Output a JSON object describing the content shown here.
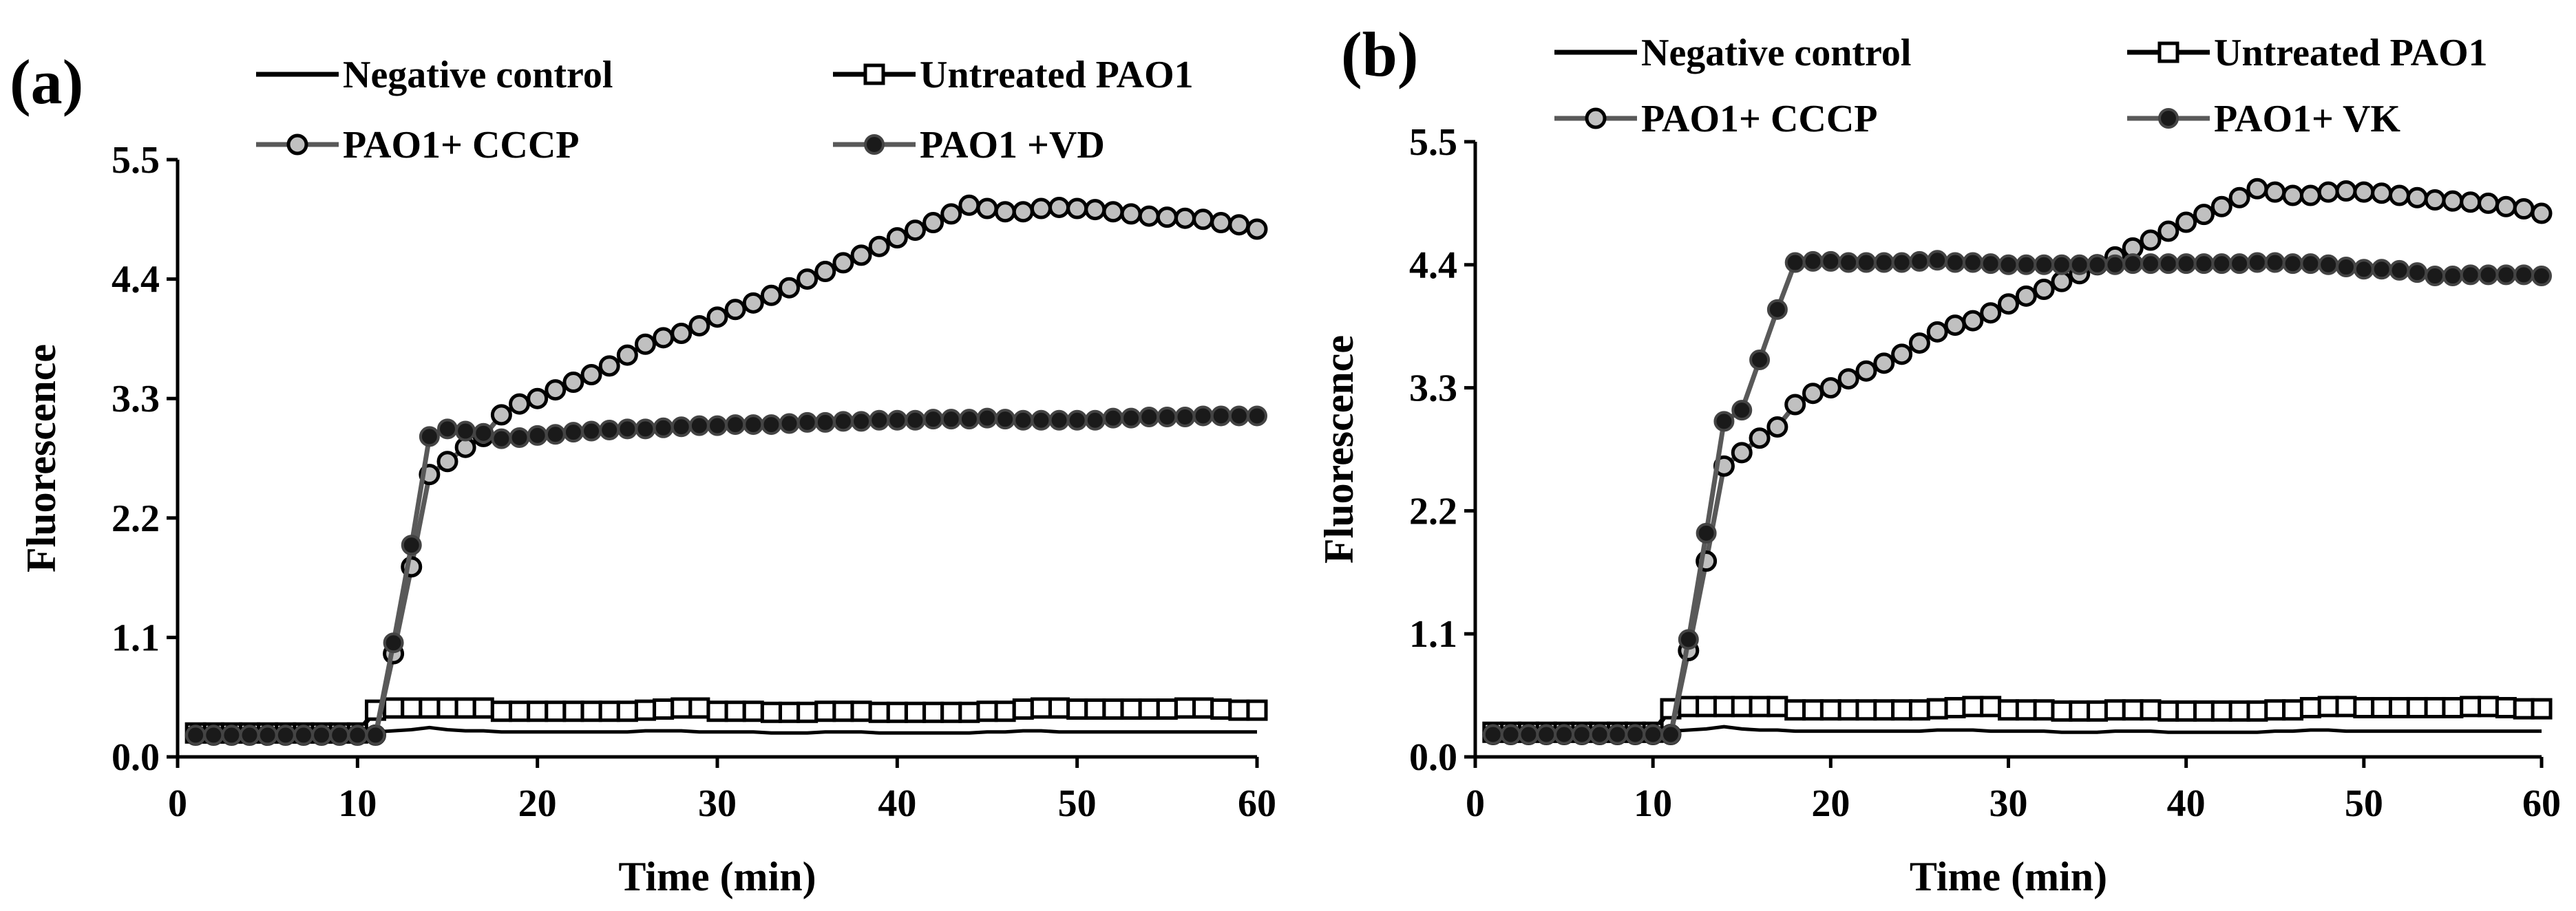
{
  "figure": {
    "panels": [
      {
        "label": "(a)",
        "legend": [
          {
            "text": "Negative control",
            "style": "line"
          },
          {
            "text": "Untreated PAO1",
            "style": "open-square"
          },
          {
            "text": "PAO1+ CCCP",
            "style": "grey-circle"
          },
          {
            "text": "PAO1 +VD",
            "style": "black-circle"
          }
        ]
      },
      {
        "label": "(b)",
        "legend": [
          {
            "text": "Negative control",
            "style": "line"
          },
          {
            "text": "Untreated PAO1",
            "style": "open-square"
          },
          {
            "text": "PAO1+ CCCP",
            "style": "grey-circle"
          },
          {
            "text": "PAO1+ VK",
            "style": "black-circle"
          }
        ]
      }
    ],
    "colors": {
      "line": "#000000",
      "treatment_line": "#595959",
      "cccp_fill": "#c0c0c0",
      "drug_fill": "#1a1a1a",
      "square_fill": "#ffffff"
    }
  },
  "chart_data": [
    {
      "type": "line",
      "title": "(a)",
      "xlabel": "Time (min)",
      "ylabel": "Fluorescence",
      "xlim": [
        0,
        60
      ],
      "ylim": [
        0,
        5.5
      ],
      "xticks": [
        "0",
        "10",
        "20",
        "30",
        "40",
        "50",
        "60"
      ],
      "yticks": [
        "0.0",
        "1.1",
        "2.2",
        "3.3",
        "4.4",
        "5.5"
      ],
      "grid": false,
      "legend": "top",
      "x": [
        1,
        2,
        3,
        4,
        5,
        6,
        7,
        8,
        9,
        10,
        11,
        12,
        13,
        14,
        15,
        16,
        17,
        18,
        19,
        20,
        21,
        22,
        23,
        24,
        25,
        26,
        27,
        28,
        29,
        30,
        31,
        32,
        33,
        34,
        35,
        36,
        37,
        38,
        39,
        40,
        41,
        42,
        43,
        44,
        45,
        46,
        47,
        48,
        49,
        50,
        51,
        52,
        53,
        54,
        55,
        56,
        57,
        58,
        59,
        60
      ],
      "series": [
        {
          "name": "Negative control",
          "marker": "none",
          "values": [
            0.23,
            0.23,
            0.23,
            0.23,
            0.23,
            0.23,
            0.23,
            0.23,
            0.23,
            0.23,
            0.23,
            0.24,
            0.25,
            0.27,
            0.25,
            0.24,
            0.24,
            0.23,
            0.23,
            0.23,
            0.23,
            0.23,
            0.23,
            0.23,
            0.23,
            0.24,
            0.24,
            0.24,
            0.23,
            0.23,
            0.23,
            0.23,
            0.22,
            0.22,
            0.22,
            0.23,
            0.23,
            0.23,
            0.22,
            0.22,
            0.22,
            0.22,
            0.22,
            0.22,
            0.23,
            0.23,
            0.24,
            0.24,
            0.23,
            0.23,
            0.23,
            0.23,
            0.23,
            0.23,
            0.23,
            0.23,
            0.23,
            0.23,
            0.23,
            0.23
          ]
        },
        {
          "name": "Untreated PAO1",
          "marker": "open-square",
          "values": [
            0.22,
            0.22,
            0.22,
            0.22,
            0.22,
            0.22,
            0.22,
            0.22,
            0.22,
            0.22,
            0.43,
            0.45,
            0.45,
            0.45,
            0.45,
            0.45,
            0.45,
            0.42,
            0.42,
            0.42,
            0.42,
            0.42,
            0.42,
            0.42,
            0.42,
            0.43,
            0.44,
            0.45,
            0.45,
            0.42,
            0.42,
            0.42,
            0.41,
            0.41,
            0.41,
            0.42,
            0.42,
            0.42,
            0.41,
            0.41,
            0.41,
            0.41,
            0.41,
            0.41,
            0.42,
            0.42,
            0.44,
            0.45,
            0.45,
            0.44,
            0.44,
            0.44,
            0.44,
            0.44,
            0.44,
            0.45,
            0.45,
            0.44,
            0.43,
            0.43
          ]
        },
        {
          "name": "PAO1+ CCCP",
          "marker": "grey-circle",
          "values": [
            0.2,
            0.2,
            0.2,
            0.2,
            0.2,
            0.2,
            0.2,
            0.2,
            0.2,
            0.2,
            0.2,
            0.95,
            1.75,
            2.6,
            2.72,
            2.85,
            2.95,
            3.15,
            3.25,
            3.3,
            3.38,
            3.45,
            3.52,
            3.6,
            3.7,
            3.8,
            3.86,
            3.9,
            3.97,
            4.05,
            4.12,
            4.18,
            4.25,
            4.32,
            4.4,
            4.47,
            4.55,
            4.62,
            4.7,
            4.78,
            4.85,
            4.92,
            5.0,
            5.08,
            5.05,
            5.02,
            5.02,
            5.05,
            5.06,
            5.05,
            5.04,
            5.02,
            5.0,
            4.98,
            4.97,
            4.96,
            4.95,
            4.92,
            4.9,
            4.86
          ]
        },
        {
          "name": "PAO1 +VD",
          "marker": "black-circle",
          "values": [
            0.2,
            0.2,
            0.2,
            0.2,
            0.2,
            0.2,
            0.2,
            0.2,
            0.2,
            0.2,
            0.2,
            1.05,
            1.95,
            2.95,
            3.02,
            3.0,
            2.98,
            2.93,
            2.94,
            2.96,
            2.97,
            2.99,
            3.0,
            3.01,
            3.02,
            3.02,
            3.03,
            3.04,
            3.05,
            3.05,
            3.06,
            3.06,
            3.06,
            3.07,
            3.08,
            3.08,
            3.09,
            3.09,
            3.1,
            3.1,
            3.1,
            3.11,
            3.11,
            3.11,
            3.12,
            3.11,
            3.1,
            3.1,
            3.1,
            3.1,
            3.1,
            3.12,
            3.12,
            3.13,
            3.13,
            3.13,
            3.14,
            3.14,
            3.14,
            3.14
          ]
        }
      ]
    },
    {
      "type": "line",
      "title": "(b)",
      "xlabel": "Time (min)",
      "ylabel": "Fluorescence",
      "xlim": [
        0,
        60
      ],
      "ylim": [
        0,
        5.5
      ],
      "xticks": [
        "0",
        "10",
        "20",
        "30",
        "40",
        "50",
        "60"
      ],
      "yticks": [
        "0.0",
        "1.1",
        "2.2",
        "3.3",
        "4.4",
        "5.5"
      ],
      "grid": false,
      "legend": "top",
      "x": [
        1,
        2,
        3,
        4,
        5,
        6,
        7,
        8,
        9,
        10,
        11,
        12,
        13,
        14,
        15,
        16,
        17,
        18,
        19,
        20,
        21,
        22,
        23,
        24,
        25,
        26,
        27,
        28,
        29,
        30,
        31,
        32,
        33,
        34,
        35,
        36,
        37,
        38,
        39,
        40,
        41,
        42,
        43,
        44,
        45,
        46,
        47,
        48,
        49,
        50,
        51,
        52,
        53,
        54,
        55,
        56,
        57,
        58,
        59,
        60
      ],
      "series": [
        {
          "name": "Negative control",
          "marker": "none",
          "values": [
            0.23,
            0.23,
            0.23,
            0.23,
            0.23,
            0.23,
            0.23,
            0.23,
            0.23,
            0.23,
            0.23,
            0.24,
            0.25,
            0.27,
            0.25,
            0.24,
            0.24,
            0.23,
            0.23,
            0.23,
            0.23,
            0.23,
            0.23,
            0.23,
            0.23,
            0.24,
            0.24,
            0.24,
            0.23,
            0.23,
            0.23,
            0.23,
            0.22,
            0.22,
            0.22,
            0.23,
            0.23,
            0.23,
            0.22,
            0.22,
            0.22,
            0.22,
            0.22,
            0.22,
            0.23,
            0.23,
            0.24,
            0.24,
            0.23,
            0.23,
            0.23,
            0.23,
            0.23,
            0.23,
            0.23,
            0.23,
            0.23,
            0.23,
            0.23,
            0.23
          ]
        },
        {
          "name": "Untreated PAO1",
          "marker": "open-square",
          "values": [
            0.22,
            0.22,
            0.22,
            0.22,
            0.22,
            0.22,
            0.22,
            0.22,
            0.22,
            0.22,
            0.43,
            0.45,
            0.45,
            0.45,
            0.45,
            0.45,
            0.45,
            0.42,
            0.42,
            0.42,
            0.42,
            0.42,
            0.42,
            0.42,
            0.42,
            0.43,
            0.44,
            0.45,
            0.45,
            0.42,
            0.42,
            0.42,
            0.41,
            0.41,
            0.41,
            0.42,
            0.42,
            0.42,
            0.41,
            0.41,
            0.41,
            0.41,
            0.41,
            0.41,
            0.42,
            0.42,
            0.44,
            0.45,
            0.45,
            0.44,
            0.44,
            0.44,
            0.44,
            0.44,
            0.44,
            0.45,
            0.45,
            0.44,
            0.43,
            0.43
          ]
        },
        {
          "name": "PAO1+ CCCP",
          "marker": "grey-circle",
          "values": [
            0.2,
            0.2,
            0.2,
            0.2,
            0.2,
            0.2,
            0.2,
            0.2,
            0.2,
            0.2,
            0.2,
            0.95,
            1.75,
            2.6,
            2.72,
            2.85,
            2.95,
            3.15,
            3.25,
            3.3,
            3.38,
            3.45,
            3.52,
            3.6,
            3.7,
            3.8,
            3.86,
            3.9,
            3.97,
            4.05,
            4.12,
            4.18,
            4.25,
            4.32,
            4.4,
            4.47,
            4.55,
            4.62,
            4.7,
            4.78,
            4.85,
            4.92,
            5.0,
            5.08,
            5.05,
            5.02,
            5.02,
            5.05,
            5.06,
            5.05,
            5.04,
            5.02,
            5.0,
            4.98,
            4.97,
            4.96,
            4.95,
            4.92,
            4.9,
            4.86
          ]
        },
        {
          "name": "PAO1+ VK",
          "marker": "black-circle",
          "values": [
            0.2,
            0.2,
            0.2,
            0.2,
            0.2,
            0.2,
            0.2,
            0.2,
            0.2,
            0.2,
            0.2,
            1.05,
            2.0,
            3.0,
            3.1,
            3.55,
            4.0,
            4.42,
            4.43,
            4.43,
            4.42,
            4.42,
            4.42,
            4.42,
            4.43,
            4.44,
            4.42,
            4.42,
            4.41,
            4.4,
            4.4,
            4.4,
            4.4,
            4.4,
            4.4,
            4.4,
            4.41,
            4.41,
            4.41,
            4.41,
            4.41,
            4.41,
            4.41,
            4.42,
            4.42,
            4.41,
            4.41,
            4.4,
            4.38,
            4.36,
            4.36,
            4.35,
            4.33,
            4.3,
            4.3,
            4.31,
            4.31,
            4.31,
            4.31,
            4.3
          ]
        }
      ]
    }
  ]
}
